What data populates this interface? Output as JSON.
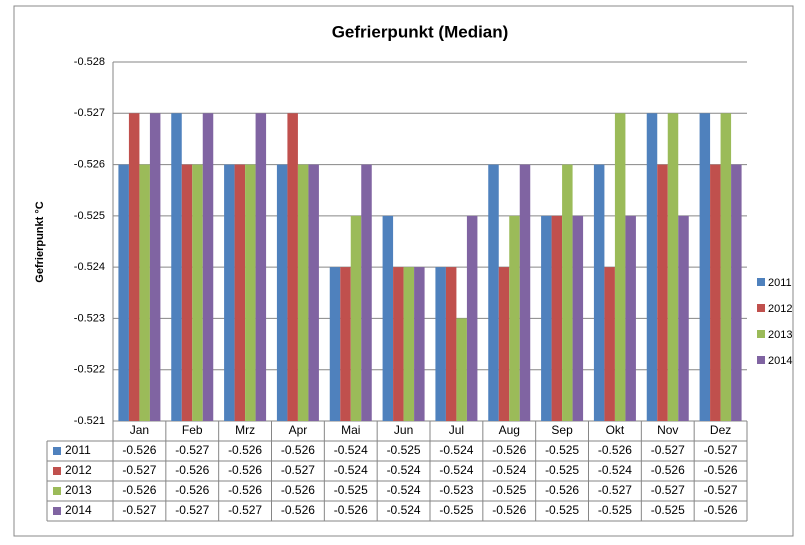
{
  "chart_data": {
    "type": "bar",
    "title": "Gefrierpunkt (Median)",
    "y_label": "Gefrierpunkt °C",
    "categories": [
      "Jan",
      "Feb",
      "Mrz",
      "Apr",
      "Mai",
      "Jun",
      "Jul",
      "Aug",
      "Sep",
      "Okt",
      "Nov",
      "Dez"
    ],
    "series": [
      {
        "name": "2011",
        "color": "#4f81bd",
        "values": [
          -0.526,
          -0.527,
          -0.526,
          -0.526,
          -0.524,
          -0.525,
          -0.524,
          -0.526,
          -0.525,
          -0.526,
          -0.527,
          -0.527
        ]
      },
      {
        "name": "2012",
        "color": "#c0504d",
        "values": [
          -0.527,
          -0.526,
          -0.526,
          -0.527,
          -0.524,
          -0.524,
          -0.524,
          -0.524,
          -0.525,
          -0.524,
          -0.526,
          -0.526
        ]
      },
      {
        "name": "2013",
        "color": "#9bbb59",
        "values": [
          -0.526,
          -0.526,
          -0.526,
          -0.526,
          -0.525,
          -0.524,
          -0.523,
          -0.525,
          -0.526,
          -0.527,
          -0.527,
          -0.527
        ]
      },
      {
        "name": "2014",
        "color": "#8064a2",
        "values": [
          -0.527,
          -0.527,
          -0.527,
          -0.526,
          -0.526,
          -0.524,
          -0.525,
          -0.526,
          -0.525,
          -0.525,
          -0.525,
          -0.526
        ]
      }
    ],
    "ylim": [
      -0.521,
      -0.528
    ],
    "yticks": [
      -0.528,
      -0.527,
      -0.526,
      -0.525,
      -0.524,
      -0.523,
      -0.522,
      -0.521
    ],
    "grid": true,
    "legend": "right",
    "data_table": true
  }
}
